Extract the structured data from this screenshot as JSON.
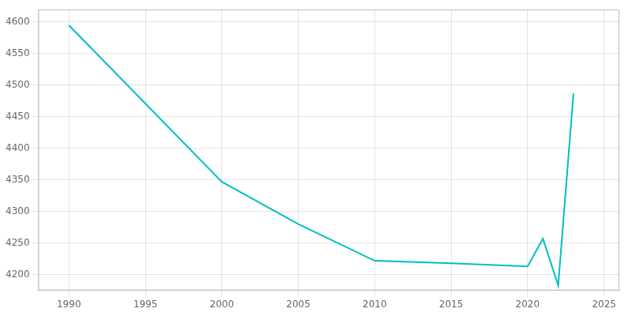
{
  "chart_data": {
    "type": "line",
    "x": [
      1990,
      2000,
      2005,
      2010,
      2015,
      2020,
      2021,
      2022,
      2023
    ],
    "values": [
      4595,
      4347,
      4280,
      4222,
      4218,
      4213,
      4257,
      4183,
      4487
    ],
    "color": "#00BFBF",
    "xlim": [
      1988,
      2026
    ],
    "xticks": [
      1990,
      1995,
      2000,
      2005,
      2010,
      2015,
      2020,
      2025
    ],
    "ylim": [
      4175,
      4620
    ],
    "yticks": [
      4200,
      4250,
      4300,
      4350,
      4400,
      4450,
      4500,
      4550,
      4600
    ],
    "grid": true
  }
}
